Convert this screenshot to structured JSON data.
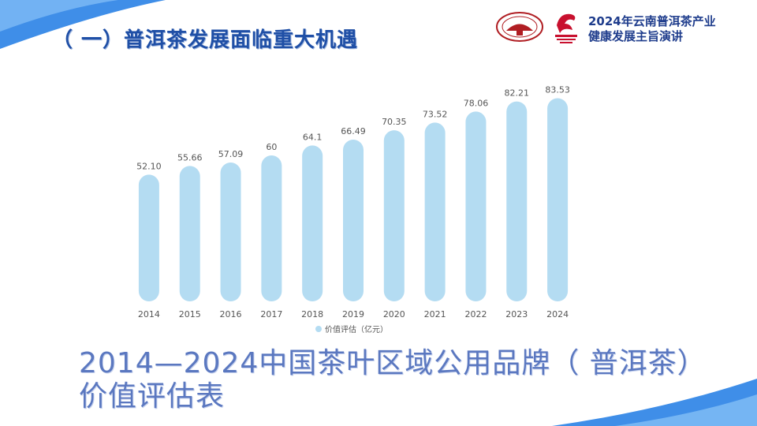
{
  "slide": {
    "title": "（ 一）普洱茶发展面临重大机遇",
    "header_line1": "2024年云南普洱茶产业",
    "header_line2": "健康发展主旨演讲",
    "caption_line1": "2014—2024中国茶叶区域公用品牌（ 普洱茶）",
    "caption_line2": "价值评估表",
    "logo_icons": [
      "pu-erh-tea-association-logo-icon",
      "red-phoenix-logo-icon"
    ]
  },
  "colors": {
    "bar": "#b4dcf2",
    "label": "#555555",
    "title": "#1f4fa6",
    "accent": "#2f7fd6"
  },
  "chart_data": {
    "type": "bar",
    "categories": [
      "2014",
      "2015",
      "2016",
      "2017",
      "2018",
      "2019",
      "2020",
      "2021",
      "2022",
      "2023",
      "2024"
    ],
    "series": [
      {
        "name": "价值评估（亿元）",
        "values": [
          52.1,
          55.66,
          57.09,
          60,
          64.1,
          66.49,
          70.35,
          73.52,
          78.06,
          82.21,
          83.53
        ],
        "labels": [
          "52.10",
          "55.66",
          "57.09",
          "60",
          "64.1",
          "66.49",
          "70.35",
          "73.52",
          "78.06",
          "82.21",
          "83.53"
        ]
      }
    ],
    "ylim": [
      0,
      85
    ],
    "grid": false,
    "legend_position": "bottom",
    "bar_style": "rounded"
  }
}
